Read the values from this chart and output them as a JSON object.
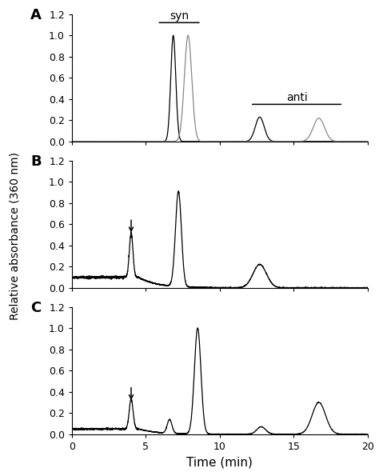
{
  "title": "",
  "ylabel": "Relative absorbance (360 nm)",
  "xlabel": "Time (min)",
  "xlim": [
    0,
    20
  ],
  "ylim": [
    0,
    1.2
  ],
  "yticks": [
    0.0,
    0.2,
    0.4,
    0.6,
    0.8,
    1.0,
    1.2
  ],
  "xticks": [
    0,
    5,
    10,
    15,
    20
  ],
  "panels": [
    "A",
    "B",
    "C"
  ],
  "background": "#ffffff",
  "line_color": "#000000",
  "line_color2": "#888888"
}
